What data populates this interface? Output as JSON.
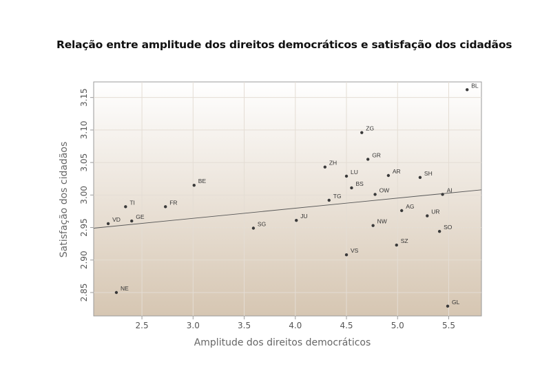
{
  "chart_data": {
    "type": "scatter",
    "title": "Relação entre amplitude dos direitos democráticos e satisfação dos cidadãos",
    "xlabel": "Amplitude dos direitos democráticos",
    "ylabel": "Satisfação dos cidadãos",
    "xlim": [
      2.028,
      5.82
    ],
    "ylim": [
      2.814,
      3.174
    ],
    "xticks": [
      "2.5",
      "3.0",
      "3.5",
      "4.0",
      "4.5",
      "5.0",
      "5.5"
    ],
    "yticks": [
      "2.85",
      "2.90",
      "2.95",
      "3.00",
      "3.05",
      "3.10",
      "3.15"
    ],
    "grid": true,
    "trendline": {
      "x": [
        2.028,
        5.82
      ],
      "y": [
        2.949,
        3.008
      ]
    },
    "points": [
      {
        "label": "BL",
        "x": 5.68,
        "y": 3.162
      },
      {
        "label": "ZG",
        "x": 4.65,
        "y": 3.096
      },
      {
        "label": "GR",
        "x": 4.71,
        "y": 3.055
      },
      {
        "label": "ZH",
        "x": 4.29,
        "y": 3.043
      },
      {
        "label": "LU",
        "x": 4.5,
        "y": 3.029
      },
      {
        "label": "AR",
        "x": 4.91,
        "y": 3.03
      },
      {
        "label": "SH",
        "x": 5.22,
        "y": 3.027
      },
      {
        "label": "BE",
        "x": 3.01,
        "y": 3.015
      },
      {
        "label": "BS",
        "x": 4.55,
        "y": 3.011
      },
      {
        "label": "OW",
        "x": 4.78,
        "y": 3.001
      },
      {
        "label": "AI",
        "x": 5.44,
        "y": 3.001
      },
      {
        "label": "TG",
        "x": 4.33,
        "y": 2.992
      },
      {
        "label": "TI",
        "x": 2.34,
        "y": 2.982
      },
      {
        "label": "FR",
        "x": 2.73,
        "y": 2.982
      },
      {
        "label": "AG",
        "x": 5.04,
        "y": 2.976
      },
      {
        "label": "UR",
        "x": 5.29,
        "y": 2.968
      },
      {
        "label": "GE",
        "x": 2.4,
        "y": 2.96
      },
      {
        "label": "JU",
        "x": 4.01,
        "y": 2.961
      },
      {
        "label": "VD",
        "x": 2.17,
        "y": 2.956
      },
      {
        "label": "NW",
        "x": 4.76,
        "y": 2.953
      },
      {
        "label": "SG",
        "x": 3.59,
        "y": 2.949
      },
      {
        "label": "SO",
        "x": 5.41,
        "y": 2.944
      },
      {
        "label": "SZ",
        "x": 4.99,
        "y": 2.923
      },
      {
        "label": "VS",
        "x": 4.5,
        "y": 2.908
      },
      {
        "label": "NE",
        "x": 2.25,
        "y": 2.85
      },
      {
        "label": "GL",
        "x": 5.49,
        "y": 2.829
      }
    ],
    "colors": {
      "point": "#3a3a3a",
      "bg_top": "#ffffff",
      "bg_bottom": "#d6c6b2",
      "grid": "#e4ddd4",
      "line": "#555555"
    }
  }
}
